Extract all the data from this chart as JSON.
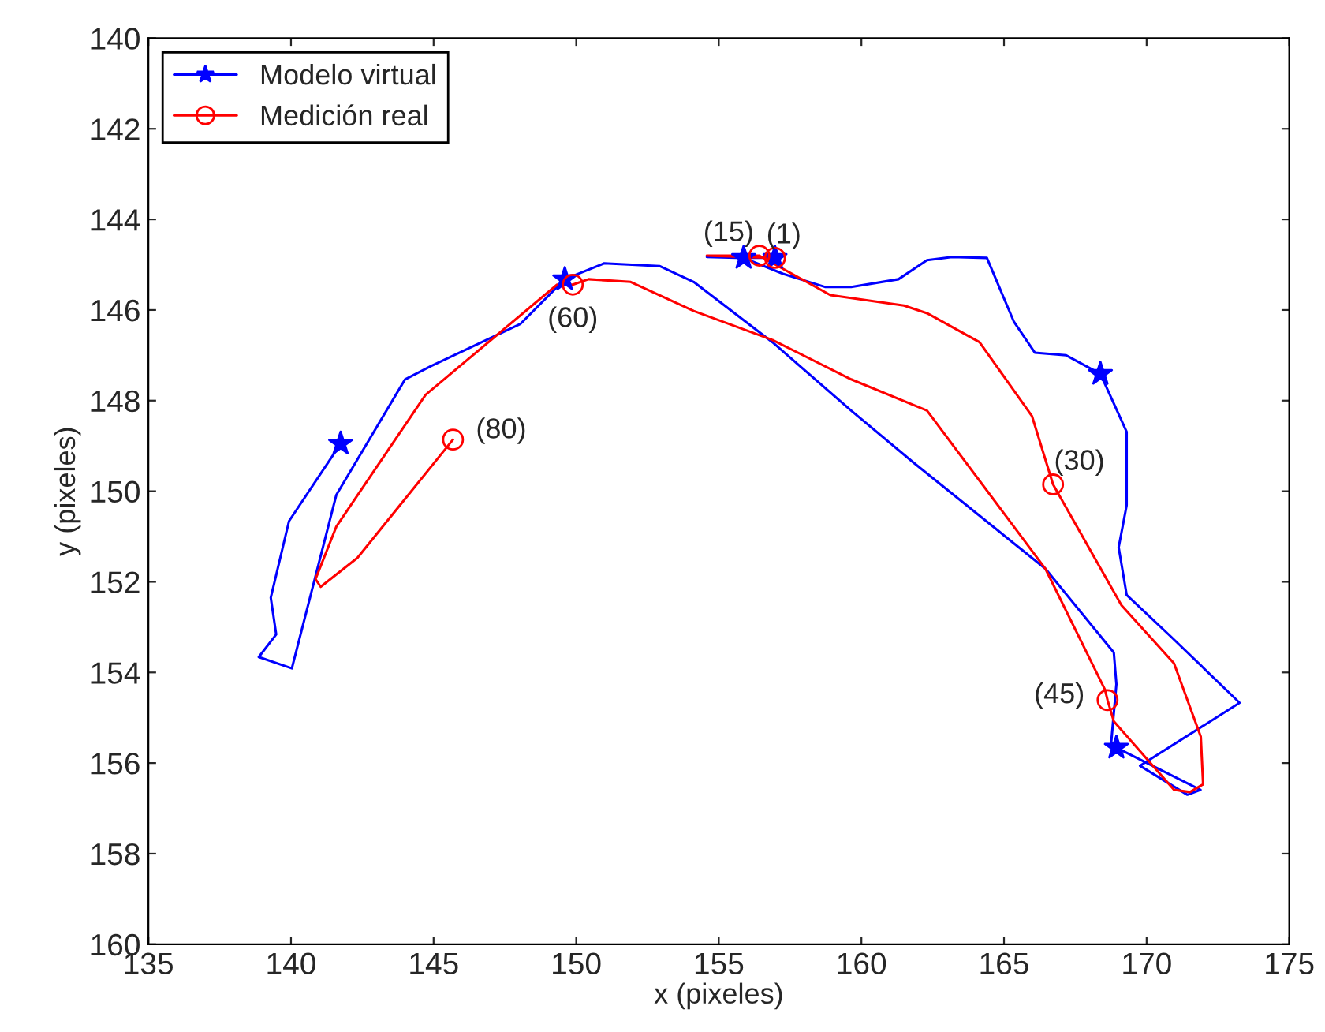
{
  "chart_data": {
    "type": "line",
    "xlabel": "x (pixeles)",
    "ylabel": "y (pixeles)",
    "xlim": [
      135,
      175
    ],
    "ylim": [
      160,
      140
    ],
    "xticks": [
      135,
      140,
      145,
      150,
      155,
      160,
      165,
      170,
      175
    ],
    "yticks": [
      140,
      142,
      144,
      146,
      148,
      150,
      152,
      154,
      156,
      158,
      160
    ],
    "grid": false,
    "legend": "top left",
    "series": [
      {
        "name": "Modelo virtual",
        "color": "#0000ff",
        "x": [
          156.97,
          154.58,
          155.87,
          157.25,
          158.72,
          159.64,
          161.3,
          162.3,
          163.18,
          164.4,
          165.34,
          166.08,
          167.18,
          168.38,
          169.3,
          169.3,
          169.02,
          169.3,
          170.87,
          173.26,
          169.77,
          171.43,
          171.89,
          168.94,
          168.76,
          168.94,
          168.85,
          166.45,
          161.85,
          159.64,
          156.88,
          154.12,
          152.92,
          150.98,
          149.6,
          148.04,
          144.9,
          144.0,
          141.59,
          140.03,
          138.87,
          139.48,
          139.29,
          139.93,
          141.74
        ],
        "values": [
          144.85,
          144.83,
          144.85,
          145.2,
          145.49,
          145.49,
          145.32,
          144.9,
          144.83,
          144.85,
          146.25,
          146.94,
          147.0,
          147.41,
          148.69,
          150.31,
          151.24,
          152.29,
          153.22,
          154.67,
          156.06,
          156.7,
          156.59,
          155.66,
          155.54,
          154.26,
          153.56,
          151.71,
          149.38,
          148.22,
          146.71,
          145.38,
          145.03,
          144.97,
          145.32,
          146.31,
          147.24,
          147.53,
          150.08,
          153.91,
          153.66,
          153.16,
          152.35,
          150.66,
          148.95
        ]
      },
      {
        "color": "#0000ff",
        "marker": "star",
        "type": "scatter",
        "x": [
          156.97,
          155.87,
          168.38,
          168.94,
          149.6,
          141.74
        ],
        "values": [
          144.85,
          144.85,
          147.41,
          155.66,
          145.32,
          148.95
        ]
      },
      {
        "name": "Medición real",
        "color": "#ff0000",
        "x": [
          156.97,
          154.58,
          156.42,
          158.91,
          161.49,
          162.3,
          164.14,
          165.98,
          166.72,
          169.12,
          170.96,
          171.9,
          171.98,
          171.52,
          170.96,
          168.85,
          168.63,
          168.54,
          166.45,
          162.3,
          159.64,
          156.88,
          154.12,
          151.91,
          150.43,
          149.88,
          149.33,
          144.72,
          141.59,
          140.86,
          141.04,
          142.33,
          145.68
        ],
        "values": [
          144.85,
          144.8,
          144.8,
          145.67,
          145.9,
          146.07,
          146.71,
          148.34,
          149.85,
          152.52,
          153.8,
          155.42,
          156.47,
          156.64,
          156.59,
          155.08,
          154.61,
          154.38,
          151.71,
          148.22,
          147.53,
          146.66,
          146.02,
          145.38,
          145.32,
          145.44,
          145.44,
          147.87,
          150.78,
          151.94,
          152.11,
          151.47,
          148.86
        ]
      },
      {
        "color": "#ff0000",
        "marker": "circle",
        "type": "scatter",
        "x": [
          156.97,
          156.42,
          166.72,
          168.63,
          149.88,
          145.68
        ],
        "values": [
          144.85,
          144.8,
          149.85,
          154.61,
          145.44,
          148.86
        ]
      }
    ],
    "annotations": [
      {
        "text": "(1)",
        "x": 156.97,
        "y": 144.85
      },
      {
        "text": "(15)",
        "x": 156.42,
        "y": 144.8
      },
      {
        "text": "(30)",
        "x": 166.72,
        "y": 149.85
      },
      {
        "text": "(45)",
        "x": 168.63,
        "y": 154.61
      },
      {
        "text": "(60)",
        "x": 149.88,
        "y": 145.44
      },
      {
        "text": "(80)",
        "x": 145.68,
        "y": 148.86
      }
    ]
  }
}
